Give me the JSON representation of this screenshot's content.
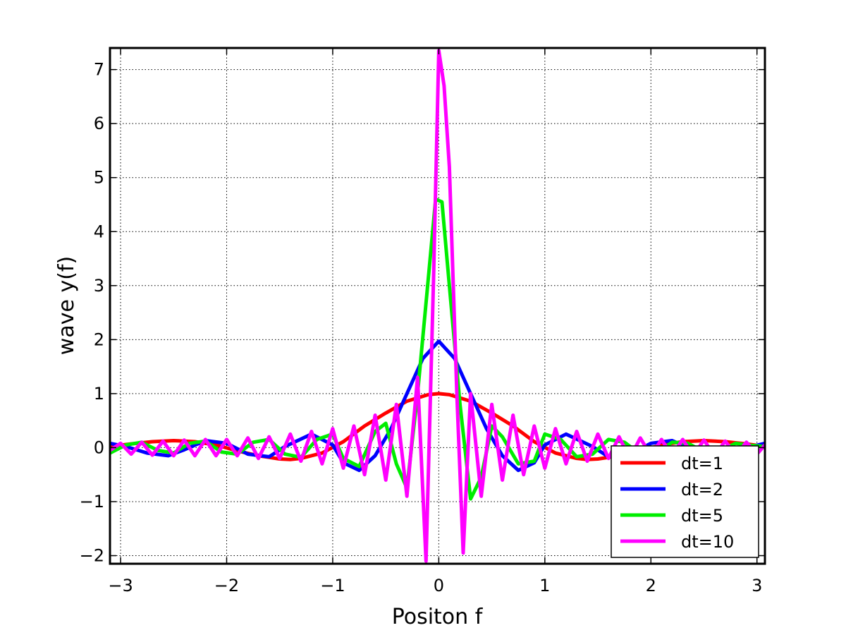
{
  "chart_data": {
    "type": "line",
    "title": "",
    "xlabel": "Positon f",
    "ylabel": "wave y(f)",
    "xlim": [
      -3.1,
      3.075
    ],
    "ylim": [
      -2.15,
      7.4
    ],
    "xticks": [
      -3,
      -2,
      -1,
      0,
      1,
      2,
      3
    ],
    "xtick_labels": [
      "−3",
      "−2",
      "−1",
      "0",
      "1",
      "2",
      "3"
    ],
    "yticks": [
      -2,
      -1,
      0,
      1,
      2,
      3,
      4,
      5,
      6,
      7
    ],
    "ytick_labels": [
      "−2",
      "−1",
      "0",
      "1",
      "2",
      "3",
      "4",
      "5",
      "6",
      "7"
    ],
    "grid": true,
    "legend_position": "bottom-right",
    "series": [
      {
        "name": "dt=1",
        "color": "#ff0000",
        "x": [
          -3.1,
          -2.9,
          -2.7,
          -2.5,
          -2.3,
          -2.1,
          -1.9,
          -1.7,
          -1.5,
          -1.4,
          -1.3,
          -1.1,
          -0.9,
          -0.7,
          -0.5,
          -0.3,
          -0.1,
          0,
          0.1,
          0.3,
          0.5,
          0.7,
          0.9,
          1.1,
          1.3,
          1.4,
          1.5,
          1.7,
          1.9,
          2.1,
          2.3,
          2.5,
          2.7,
          2.9,
          3.075
        ],
        "y": [
          0.02,
          0.07,
          0.11,
          0.13,
          0.11,
          0.05,
          -0.06,
          -0.15,
          -0.21,
          -0.22,
          -0.2,
          -0.1,
          0.11,
          0.4,
          0.64,
          0.86,
          0.98,
          1.0,
          0.98,
          0.86,
          0.64,
          0.4,
          0.11,
          -0.1,
          -0.2,
          -0.22,
          -0.21,
          -0.15,
          -0.06,
          0.05,
          0.11,
          0.13,
          0.11,
          0.07,
          0.02
        ]
      },
      {
        "name": "dt=2",
        "color": "#0000ff",
        "x": [
          -3.1,
          -2.95,
          -2.75,
          -2.55,
          -2.4,
          -2.2,
          -2.0,
          -1.8,
          -1.6,
          -1.45,
          -1.2,
          -1.0,
          -0.9,
          -0.75,
          -0.6,
          -0.45,
          -0.3,
          -0.15,
          0,
          0.15,
          0.3,
          0.45,
          0.6,
          0.75,
          0.9,
          1.0,
          1.2,
          1.45,
          1.6,
          1.8,
          2.0,
          2.2,
          2.4,
          2.55,
          2.75,
          2.95,
          3.075
        ],
        "y": [
          0.08,
          0.02,
          -0.1,
          -0.15,
          -0.04,
          0.13,
          0.08,
          -0.12,
          -0.17,
          0.02,
          0.25,
          0.05,
          -0.28,
          -0.42,
          -0.15,
          0.35,
          1.0,
          1.65,
          1.97,
          1.65,
          1.0,
          0.35,
          -0.15,
          -0.42,
          -0.28,
          0.05,
          0.25,
          0.02,
          -0.17,
          -0.12,
          0.08,
          0.13,
          -0.04,
          -0.15,
          -0.1,
          0.02,
          0.08
        ]
      },
      {
        "name": "dt=5",
        "color": "#00ee00",
        "x": [
          -3.1,
          -2.95,
          -2.8,
          -2.65,
          -2.5,
          -2.35,
          -2.2,
          -2.05,
          -1.9,
          -1.75,
          -1.6,
          -1.45,
          -1.3,
          -1.15,
          -1.0,
          -0.9,
          -0.75,
          -0.6,
          -0.5,
          -0.4,
          -0.3,
          -0.2,
          -0.1,
          -0.03,
          0.03,
          0.1,
          0.2,
          0.3,
          0.4,
          0.5,
          0.6,
          0.75,
          0.9,
          1.0,
          1.15,
          1.3,
          1.45,
          1.6,
          1.75,
          1.9,
          2.05,
          2.2,
          2.35,
          2.5,
          2.65,
          2.8,
          2.95,
          3.075
        ],
        "y": [
          -0.1,
          0.05,
          0.1,
          -0.05,
          -0.1,
          0.08,
          0.12,
          -0.08,
          -0.12,
          0.1,
          0.15,
          -0.12,
          -0.18,
          0.15,
          0.25,
          -0.2,
          -0.35,
          0.3,
          0.45,
          -0.3,
          -0.75,
          1.0,
          3.1,
          4.6,
          4.55,
          3.0,
          0.8,
          -0.95,
          -0.55,
          0.4,
          0.2,
          -0.3,
          -0.25,
          0.25,
          0.15,
          -0.17,
          -0.12,
          0.15,
          0.1,
          -0.12,
          -0.1,
          0.1,
          0.08,
          -0.08,
          -0.06,
          0.08,
          0.04,
          0.02
        ]
      },
      {
        "name": "dt=10",
        "color": "#ff00ff",
        "x": [
          -3.1,
          -3.0,
          -2.9,
          -2.8,
          -2.7,
          -2.6,
          -2.5,
          -2.4,
          -2.3,
          -2.2,
          -2.1,
          -2.0,
          -1.9,
          -1.8,
          -1.7,
          -1.6,
          -1.5,
          -1.4,
          -1.3,
          -1.2,
          -1.1,
          -1.0,
          -0.9,
          -0.8,
          -0.7,
          -0.6,
          -0.5,
          -0.4,
          -0.3,
          -0.2,
          -0.12,
          -0.05,
          0,
          0.05,
          0.1,
          0.17,
          0.23,
          0.3,
          0.4,
          0.5,
          0.6,
          0.7,
          0.8,
          0.9,
          1.0,
          1.1,
          1.2,
          1.3,
          1.4,
          1.5,
          1.6,
          1.7,
          1.8,
          1.9,
          2.0,
          2.1,
          2.2,
          2.3,
          2.4,
          2.5,
          2.6,
          2.7,
          2.8,
          2.9,
          3.0,
          3.075
        ],
        "y": [
          -0.05,
          0.08,
          -0.12,
          0.1,
          -0.14,
          0.12,
          -0.15,
          0.14,
          -0.15,
          0.15,
          -0.15,
          0.15,
          -0.15,
          0.18,
          -0.2,
          0.2,
          -0.2,
          0.25,
          -0.25,
          0.3,
          -0.3,
          0.35,
          -0.38,
          0.4,
          -0.5,
          0.6,
          -0.6,
          0.8,
          -0.9,
          1.3,
          -2.1,
          3.1,
          7.35,
          6.7,
          5.2,
          1.0,
          -1.95,
          1.0,
          -0.9,
          0.8,
          -0.6,
          0.6,
          -0.5,
          0.4,
          -0.38,
          0.35,
          -0.3,
          0.3,
          -0.25,
          0.25,
          -0.2,
          0.2,
          -0.2,
          0.18,
          -0.15,
          0.15,
          -0.15,
          0.15,
          -0.15,
          0.14,
          -0.15,
          0.12,
          -0.14,
          0.1,
          -0.12,
          0.05
        ]
      }
    ]
  }
}
